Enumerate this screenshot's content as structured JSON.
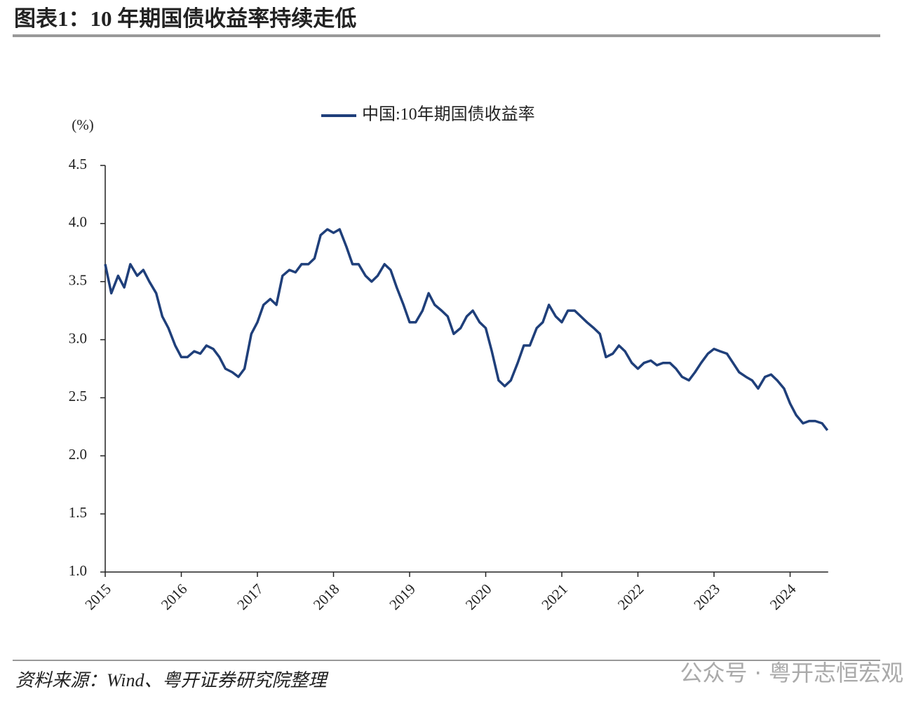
{
  "chart_data": {
    "type": "line",
    "title": "图表1：10 年期国债收益率持续走低",
    "y_label": "(%)",
    "source": "资料来源：Wind、粤开证券研究院整理",
    "watermark": "公众号 · 粤开志恒宏观",
    "legend": "top",
    "xlim": [
      2015,
      2024.5
    ],
    "xticks": [
      2015,
      2016,
      2017,
      2018,
      2019,
      2020,
      2021,
      2022,
      2023,
      2024
    ],
    "ylim": [
      1.0,
      4.5
    ],
    "yticks": [
      {
        "value": 1.0,
        "label": "1.0"
      },
      1.5,
      {
        "value": 2.0,
        "label": "2.0"
      },
      2.5,
      {
        "value": 3.0,
        "label": "3.0"
      },
      3.5,
      {
        "value": 4.0,
        "label": "4.0"
      },
      4.5
    ],
    "x": [
      2015.0,
      2015.08,
      2015.17,
      2015.25,
      2015.33,
      2015.42,
      2015.5,
      2015.58,
      2015.67,
      2015.75,
      2015.83,
      2015.92,
      2016.0,
      2016.08,
      2016.17,
      2016.25,
      2016.33,
      2016.42,
      2016.5,
      2016.58,
      2016.67,
      2016.75,
      2016.83,
      2016.92,
      2017.0,
      2017.08,
      2017.17,
      2017.25,
      2017.33,
      2017.42,
      2017.5,
      2017.58,
      2017.67,
      2017.75,
      2017.83,
      2017.92,
      2018.0,
      2018.08,
      2018.17,
      2018.25,
      2018.33,
      2018.42,
      2018.5,
      2018.58,
      2018.67,
      2018.75,
      2018.83,
      2018.92,
      2019.0,
      2019.08,
      2019.17,
      2019.25,
      2019.33,
      2019.42,
      2019.5,
      2019.58,
      2019.67,
      2019.75,
      2019.83,
      2019.92,
      2020.0,
      2020.08,
      2020.17,
      2020.25,
      2020.33,
      2020.42,
      2020.5,
      2020.58,
      2020.67,
      2020.75,
      2020.83,
      2020.92,
      2021.0,
      2021.08,
      2021.17,
      2021.25,
      2021.33,
      2021.42,
      2021.5,
      2021.58,
      2021.67,
      2021.75,
      2021.83,
      2021.92,
      2022.0,
      2022.08,
      2022.17,
      2022.25,
      2022.33,
      2022.42,
      2022.5,
      2022.58,
      2022.67,
      2022.75,
      2022.83,
      2022.92,
      2023.0,
      2023.08,
      2023.17,
      2023.25,
      2023.33,
      2023.42,
      2023.5,
      2023.58,
      2023.67,
      2023.75,
      2023.83,
      2023.92,
      2024.0,
      2024.08,
      2024.17,
      2024.25,
      2024.33,
      2024.42,
      2024.49
    ],
    "series": [
      {
        "name": "中国:10年期国债收益率",
        "color": "#1f3f7a",
        "values": [
          3.65,
          3.4,
          3.55,
          3.45,
          3.65,
          3.55,
          3.6,
          3.5,
          3.4,
          3.2,
          3.1,
          2.95,
          2.85,
          2.85,
          2.9,
          2.88,
          2.95,
          2.92,
          2.85,
          2.75,
          2.72,
          2.68,
          2.75,
          3.05,
          3.15,
          3.3,
          3.35,
          3.3,
          3.55,
          3.6,
          3.58,
          3.65,
          3.65,
          3.7,
          3.9,
          3.95,
          3.92,
          3.95,
          3.8,
          3.65,
          3.65,
          3.55,
          3.5,
          3.55,
          3.65,
          3.6,
          3.45,
          3.3,
          3.15,
          3.15,
          3.25,
          3.4,
          3.3,
          3.25,
          3.2,
          3.05,
          3.1,
          3.2,
          3.25,
          3.15,
          3.1,
          2.9,
          2.65,
          2.6,
          2.65,
          2.8,
          2.95,
          2.95,
          3.1,
          3.15,
          3.3,
          3.2,
          3.15,
          3.25,
          3.25,
          3.2,
          3.15,
          3.1,
          3.05,
          2.85,
          2.88,
          2.95,
          2.9,
          2.8,
          2.75,
          2.8,
          2.82,
          2.78,
          2.8,
          2.8,
          2.75,
          2.68,
          2.65,
          2.72,
          2.8,
          2.88,
          2.92,
          2.9,
          2.88,
          2.8,
          2.72,
          2.68,
          2.65,
          2.58,
          2.68,
          2.7,
          2.65,
          2.58,
          2.45,
          2.35,
          2.28,
          2.3,
          2.3,
          2.28,
          2.22
        ]
      }
    ]
  }
}
